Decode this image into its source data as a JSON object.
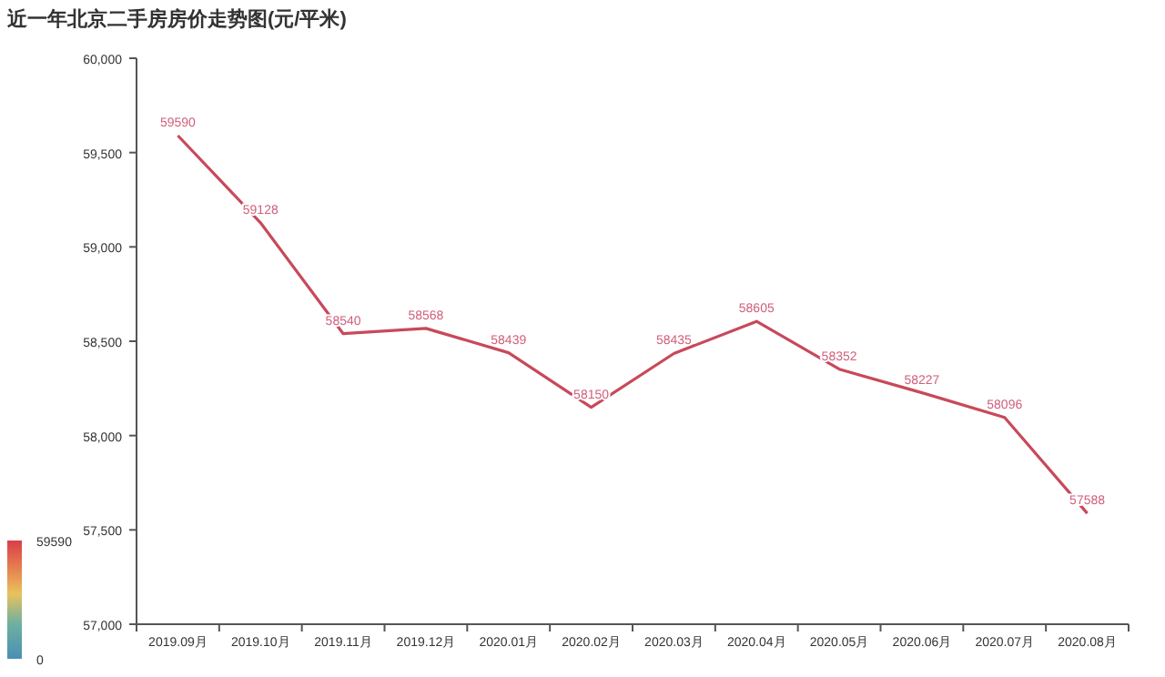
{
  "chart_data": {
    "type": "line",
    "title": "近一年北京二手房房价走势图(元/平米)",
    "categories": [
      "2019.09月",
      "2019.10月",
      "2019.11月",
      "2019.12月",
      "2020.01月",
      "2020.02月",
      "2020.03月",
      "2020.04月",
      "2020.05月",
      "2020.06月",
      "2020.07月",
      "2020.08月"
    ],
    "series": [
      {
        "color": "#c8495a",
        "values": [
          59590,
          59128,
          58540,
          58568,
          58439,
          58150,
          58435,
          58605,
          58352,
          58227,
          58096,
          57588
        ]
      }
    ],
    "ylim": [
      57000,
      60000
    ],
    "yticks": [
      {
        "value": 57000,
        "label": "57,000"
      },
      {
        "value": 57500,
        "label": "57,500"
      },
      {
        "value": 58000,
        "label": "58,000"
      },
      {
        "value": 58500,
        "label": "58,500"
      },
      {
        "value": 59000,
        "label": "59,000"
      },
      {
        "value": 59500,
        "label": "59,500"
      },
      {
        "value": 60000,
        "label": "60,000"
      }
    ],
    "clim": [
      0,
      59590
    ],
    "cticks": [
      0,
      59590
    ],
    "data_labels": true,
    "grid": false,
    "marker": "none",
    "line_style": "solid"
  }
}
